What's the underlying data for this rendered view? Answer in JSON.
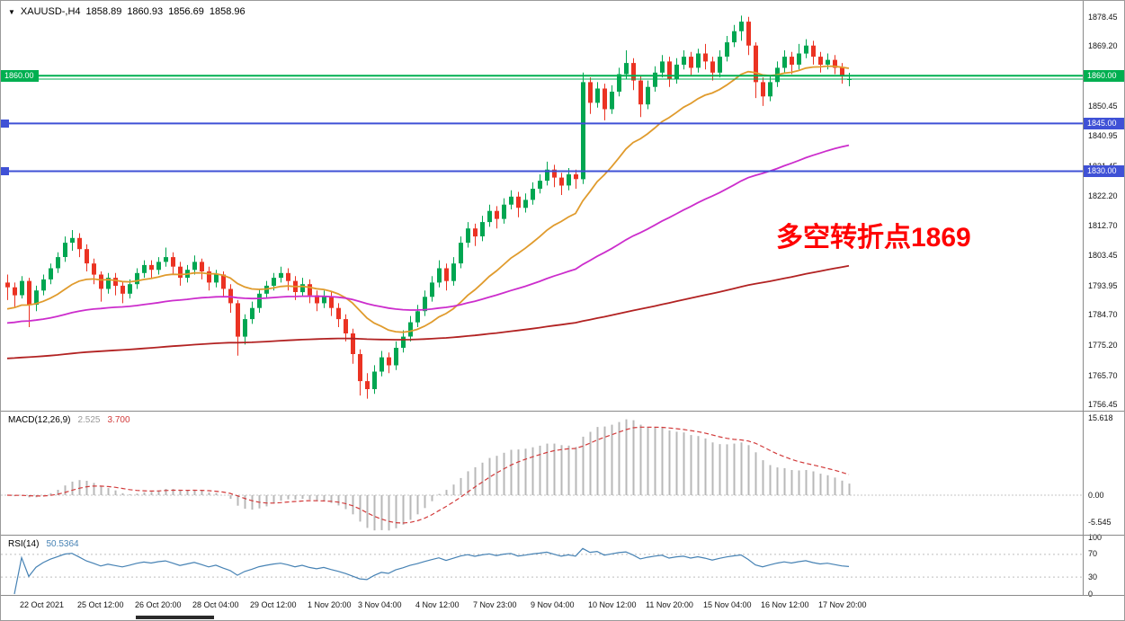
{
  "header": {
    "dropdown_icon": "▼",
    "symbol": "XAUUSD-,H4",
    "open": "1858.89",
    "high": "1860.93",
    "low": "1856.69",
    "close": "1858.96"
  },
  "annotation": {
    "text": "多空转折点1869",
    "color": "#FF0000"
  },
  "price_axis": {
    "ticks": [
      "1878.45",
      "1869.20",
      "1859.70",
      "1850.45",
      "1840.95",
      "1831.45",
      "1822.20",
      "1812.70",
      "1803.45",
      "1793.95",
      "1784.70",
      "1775.20",
      "1765.70",
      "1756.45"
    ]
  },
  "time_axis": {
    "labels": [
      {
        "i": 2,
        "text": "22 Oct 2021"
      },
      {
        "i": 10,
        "text": "25 Oct 12:00"
      },
      {
        "i": 18,
        "text": "26 Oct 20:00"
      },
      {
        "i": 26,
        "text": "28 Oct 04:00"
      },
      {
        "i": 34,
        "text": "29 Oct 12:00"
      },
      {
        "i": 42,
        "text": "1 Nov 20:00"
      },
      {
        "i": 49,
        "text": "3 Nov 04:00"
      },
      {
        "i": 57,
        "text": "4 Nov 12:00"
      },
      {
        "i": 65,
        "text": "7 Nov 23:00"
      },
      {
        "i": 73,
        "text": "9 Nov 04:00"
      },
      {
        "i": 81,
        "text": "10 Nov 12:00"
      },
      {
        "i": 89,
        "text": "11 Nov 20:00"
      },
      {
        "i": 97,
        "text": "15 Nov 04:00"
      },
      {
        "i": 105,
        "text": "16 Nov 12:00"
      },
      {
        "i": 113,
        "text": "17 Nov 20:00"
      }
    ]
  },
  "hlines": [
    {
      "price": 1860.0,
      "label": "1860.00",
      "color": "#00AF50",
      "width": 2,
      "left_box": "label"
    },
    {
      "price": 1858.96,
      "label": "",
      "color": "#00AF50",
      "width": 1,
      "left_box": ""
    },
    {
      "price": 1845.0,
      "label": "1845.00",
      "color": "#3F51D6",
      "width": 2,
      "left_box": "square"
    },
    {
      "price": 1830.0,
      "label": "1830.00",
      "color": "#3F51D6",
      "width": 2,
      "left_box": "square"
    }
  ],
  "indicators": {
    "macd": {
      "label": "MACD(12,26,9)",
      "main_value": "2.525",
      "signal_value": "3.700",
      "ticks": [
        "15.618",
        "0.00",
        "-5.545"
      ],
      "histogram_color": "#b8b8b8",
      "signal_color": "#D23B3B",
      "main_value_color": "#9a9a9a",
      "signal_value_color": "#D23B3B"
    },
    "rsi": {
      "label": "RSI(14)",
      "value": "50.5364",
      "ticks": [
        "100",
        "70",
        "30",
        "0"
      ],
      "levels": [
        70,
        30
      ],
      "line_color": "#4682B4",
      "level_color": "#bdbdbd"
    }
  },
  "chart_data": {
    "type": "candlestick",
    "title": "XAUUSD-,H4",
    "symbol": "XAUUSD-",
    "timeframe": "H4",
    "y_axis_range": [
      1755.0,
      1882.4
    ],
    "last_ohlc": {
      "open": 1858.89,
      "high": 1860.93,
      "low": 1856.69,
      "close": 1858.96
    },
    "columns": [
      "open",
      "high",
      "low",
      "close"
    ],
    "up_color": "#00A651",
    "down_color": "#EB3323",
    "candles": [
      [
        1795.0,
        1797.5,
        1789.5,
        1793.5
      ],
      [
        1793.5,
        1795.0,
        1787.0,
        1791.0
      ],
      [
        1791.0,
        1797.0,
        1790.0,
        1795.5
      ],
      [
        1795.5,
        1796.5,
        1781.0,
        1788.0
      ],
      [
        1788.0,
        1794.0,
        1786.0,
        1792.5
      ],
      [
        1792.5,
        1797.5,
        1791.0,
        1796.0
      ],
      [
        1796.0,
        1801.0,
        1794.5,
        1799.5
      ],
      [
        1799.5,
        1804.5,
        1798.0,
        1803.0
      ],
      [
        1803.0,
        1809.5,
        1801.5,
        1807.5
      ],
      [
        1807.5,
        1811.5,
        1805.0,
        1809.0
      ],
      [
        1809.0,
        1810.5,
        1803.0,
        1805.5
      ],
      [
        1805.5,
        1807.0,
        1798.5,
        1801.0
      ],
      [
        1801.0,
        1802.5,
        1794.5,
        1797.5
      ],
      [
        1797.5,
        1798.5,
        1789.0,
        1793.0
      ],
      [
        1793.0,
        1798.0,
        1791.5,
        1796.5
      ],
      [
        1796.5,
        1798.0,
        1791.0,
        1794.0
      ],
      [
        1794.0,
        1795.5,
        1788.5,
        1791.5
      ],
      [
        1791.5,
        1796.0,
        1790.0,
        1794.5
      ],
      [
        1794.5,
        1799.5,
        1793.0,
        1798.0
      ],
      [
        1798.0,
        1802.0,
        1796.5,
        1800.5
      ],
      [
        1800.5,
        1802.0,
        1796.5,
        1799.0
      ],
      [
        1799.0,
        1803.0,
        1797.5,
        1801.5
      ],
      [
        1801.5,
        1806.0,
        1800.0,
        1803.0
      ],
      [
        1803.0,
        1804.5,
        1797.5,
        1800.0
      ],
      [
        1800.0,
        1801.5,
        1794.0,
        1796.5
      ],
      [
        1796.5,
        1800.5,
        1795.0,
        1799.0
      ],
      [
        1799.0,
        1803.5,
        1797.5,
        1801.5
      ],
      [
        1801.5,
        1802.5,
        1796.0,
        1798.5
      ],
      [
        1798.5,
        1800.0,
        1792.5,
        1795.0
      ],
      [
        1795.0,
        1799.0,
        1793.5,
        1797.5
      ],
      [
        1797.5,
        1798.5,
        1790.5,
        1793.0
      ],
      [
        1793.0,
        1794.5,
        1785.5,
        1788.5
      ],
      [
        1788.5,
        1789.5,
        1772.0,
        1778.0
      ],
      [
        1778.0,
        1785.0,
        1775.5,
        1783.5
      ],
      [
        1783.5,
        1789.0,
        1782.0,
        1787.0
      ],
      [
        1787.0,
        1793.0,
        1785.5,
        1791.5
      ],
      [
        1791.5,
        1795.5,
        1790.0,
        1794.0
      ],
      [
        1794.0,
        1798.0,
        1792.5,
        1796.5
      ],
      [
        1796.5,
        1800.0,
        1795.0,
        1798.0
      ],
      [
        1798.0,
        1799.5,
        1792.5,
        1795.5
      ],
      [
        1795.5,
        1797.0,
        1789.5,
        1792.0
      ],
      [
        1792.0,
        1796.5,
        1790.5,
        1794.5
      ],
      [
        1794.5,
        1796.0,
        1788.5,
        1791.0
      ],
      [
        1791.0,
        1792.5,
        1786.0,
        1788.5
      ],
      [
        1788.5,
        1792.5,
        1787.0,
        1790.5
      ],
      [
        1790.5,
        1792.0,
        1784.5,
        1787.0
      ],
      [
        1787.0,
        1788.5,
        1781.0,
        1783.5
      ],
      [
        1783.5,
        1785.0,
        1776.5,
        1779.0
      ],
      [
        1779.0,
        1780.5,
        1769.5,
        1772.5
      ],
      [
        1772.5,
        1774.0,
        1759.5,
        1764.0
      ],
      [
        1764.0,
        1766.5,
        1758.5,
        1761.5
      ],
      [
        1761.5,
        1769.0,
        1760.0,
        1767.0
      ],
      [
        1767.0,
        1773.5,
        1765.5,
        1771.5
      ],
      [
        1771.5,
        1773.0,
        1766.5,
        1769.0
      ],
      [
        1769.0,
        1776.5,
        1767.5,
        1774.5
      ],
      [
        1774.5,
        1780.0,
        1773.0,
        1778.0
      ],
      [
        1778.0,
        1784.5,
        1776.5,
        1782.5
      ],
      [
        1782.5,
        1788.0,
        1781.0,
        1786.0
      ],
      [
        1786.0,
        1792.5,
        1784.5,
        1790.5
      ],
      [
        1790.5,
        1797.0,
        1789.0,
        1795.0
      ],
      [
        1795.0,
        1802.0,
        1793.5,
        1799.5
      ],
      [
        1799.5,
        1801.0,
        1792.5,
        1795.5
      ],
      [
        1795.5,
        1803.0,
        1794.0,
        1801.0
      ],
      [
        1801.0,
        1809.5,
        1799.5,
        1807.5
      ],
      [
        1807.5,
        1814.0,
        1806.0,
        1812.0
      ],
      [
        1812.0,
        1813.5,
        1806.5,
        1809.5
      ],
      [
        1809.5,
        1816.0,
        1808.0,
        1814.0
      ],
      [
        1814.0,
        1819.5,
        1812.5,
        1817.5
      ],
      [
        1817.5,
        1819.0,
        1812.0,
        1815.0
      ],
      [
        1815.0,
        1821.5,
        1813.5,
        1819.5
      ],
      [
        1819.5,
        1824.0,
        1818.0,
        1822.0
      ],
      [
        1822.0,
        1823.5,
        1815.5,
        1818.5
      ],
      [
        1818.5,
        1823.0,
        1817.0,
        1821.0
      ],
      [
        1821.0,
        1826.5,
        1819.5,
        1824.5
      ],
      [
        1824.5,
        1829.0,
        1823.0,
        1827.0
      ],
      [
        1827.0,
        1833.0,
        1825.5,
        1830.5
      ],
      [
        1830.5,
        1832.0,
        1825.0,
        1828.0
      ],
      [
        1828.0,
        1829.5,
        1822.5,
        1825.5
      ],
      [
        1825.5,
        1831.0,
        1824.0,
        1829.0
      ],
      [
        1829.0,
        1830.5,
        1824.5,
        1827.5
      ],
      [
        1827.5,
        1861.0,
        1826.0,
        1858.0
      ],
      [
        1858.0,
        1859.5,
        1848.0,
        1851.5
      ],
      [
        1851.5,
        1858.0,
        1850.0,
        1856.0
      ],
      [
        1856.0,
        1857.5,
        1846.0,
        1849.5
      ],
      [
        1849.5,
        1857.0,
        1848.0,
        1855.0
      ],
      [
        1855.0,
        1862.5,
        1853.5,
        1860.5
      ],
      [
        1860.5,
        1868.0,
        1859.0,
        1864.0
      ],
      [
        1864.0,
        1865.5,
        1855.5,
        1858.5
      ],
      [
        1858.5,
        1860.0,
        1847.0,
        1851.0
      ],
      [
        1851.0,
        1858.5,
        1849.5,
        1856.5
      ],
      [
        1856.5,
        1863.0,
        1855.0,
        1861.0
      ],
      [
        1861.0,
        1866.5,
        1859.5,
        1864.5
      ],
      [
        1864.5,
        1866.0,
        1856.5,
        1859.0
      ],
      [
        1859.0,
        1865.5,
        1857.5,
        1863.5
      ],
      [
        1863.5,
        1868.0,
        1862.0,
        1866.0
      ],
      [
        1866.0,
        1867.5,
        1860.0,
        1862.5
      ],
      [
        1862.5,
        1868.5,
        1861.0,
        1867.0
      ],
      [
        1867.0,
        1870.0,
        1862.0,
        1864.5
      ],
      [
        1864.5,
        1866.0,
        1858.5,
        1861.0
      ],
      [
        1861.0,
        1868.0,
        1859.5,
        1866.0
      ],
      [
        1866.0,
        1872.5,
        1864.5,
        1870.5
      ],
      [
        1870.5,
        1876.0,
        1869.0,
        1874.0
      ],
      [
        1874.0,
        1878.9,
        1871.0,
        1877.0
      ],
      [
        1877.0,
        1878.5,
        1866.5,
        1869.5
      ],
      [
        1869.5,
        1870.5,
        1853.0,
        1858.0
      ],
      [
        1858.0,
        1859.5,
        1850.5,
        1853.5
      ],
      [
        1853.5,
        1860.0,
        1852.0,
        1858.0
      ],
      [
        1858.0,
        1864.5,
        1856.5,
        1862.5
      ],
      [
        1862.5,
        1868.0,
        1861.0,
        1866.0
      ],
      [
        1866.0,
        1867.5,
        1860.5,
        1863.5
      ],
      [
        1863.5,
        1870.0,
        1862.0,
        1867.0
      ],
      [
        1867.0,
        1871.5,
        1865.5,
        1869.5
      ],
      [
        1869.5,
        1871.0,
        1863.5,
        1866.0
      ],
      [
        1866.0,
        1867.5,
        1861.0,
        1863.5
      ],
      [
        1863.5,
        1867.0,
        1862.0,
        1865.0
      ],
      [
        1865.0,
        1866.5,
        1860.5,
        1862.5
      ],
      [
        1862.5,
        1864.0,
        1857.5,
        1860.0
      ],
      [
        1858.89,
        1860.93,
        1856.69,
        1858.96
      ]
    ],
    "moving_averages": [
      {
        "name": "ma-fast",
        "color": "#E09B2D",
        "period": 20,
        "seed": 1786
      },
      {
        "name": "ma-medium",
        "color": "#CC2DCC",
        "period": 80,
        "seed": 1782
      },
      {
        "name": "ma-slow",
        "color": "#B22222",
        "period": 300,
        "seed": 1771
      }
    ],
    "macd": {
      "fast": 12,
      "slow": 26,
      "signal": 9
    },
    "rsi": {
      "period": 14
    }
  }
}
